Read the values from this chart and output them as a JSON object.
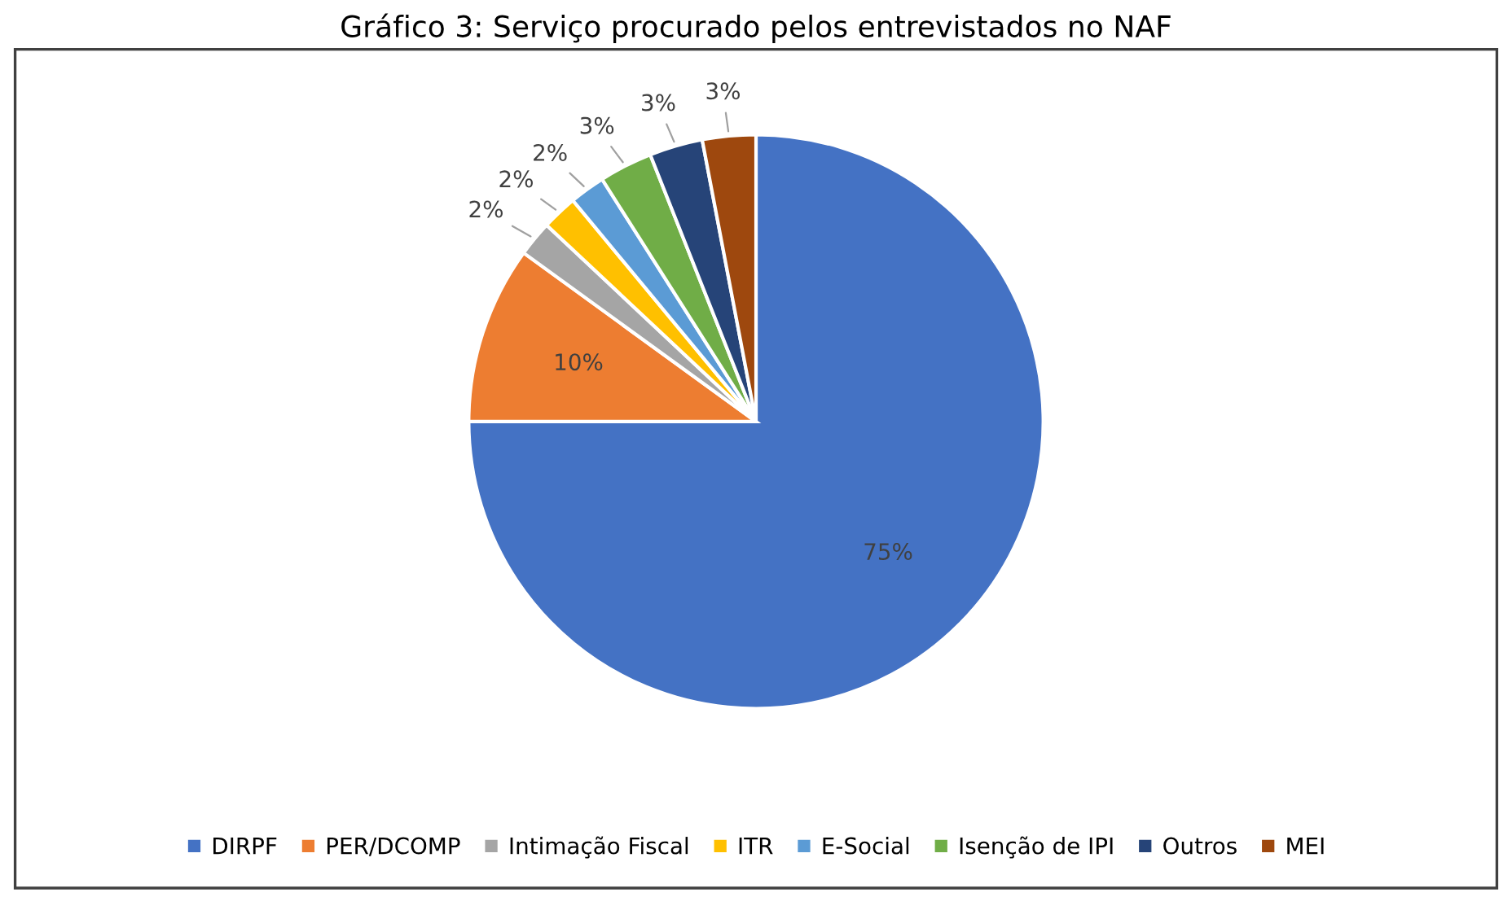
{
  "chart_data": {
    "type": "pie",
    "title": "Gráfico 3: Serviço procurado pelos entrevistados no NAF",
    "categories": [
      "DIRPF",
      "PER/DCOMP",
      "Intimação Fiscal",
      "ITR",
      "E-Social",
      "Isenção de IPI",
      "Outros",
      "MEI"
    ],
    "values": [
      75,
      10,
      2,
      2,
      2,
      3,
      3,
      3
    ],
    "colors": [
      "#4472c4",
      "#ed7d31",
      "#a5a5a5",
      "#ffc000",
      "#5b9bd5",
      "#70ad47",
      "#264478",
      "#9e480e"
    ],
    "value_labels": [
      "75%",
      "10%",
      "2%",
      "2%",
      "2%",
      "3%",
      "3%",
      "3%"
    ],
    "legend": "bottom"
  }
}
